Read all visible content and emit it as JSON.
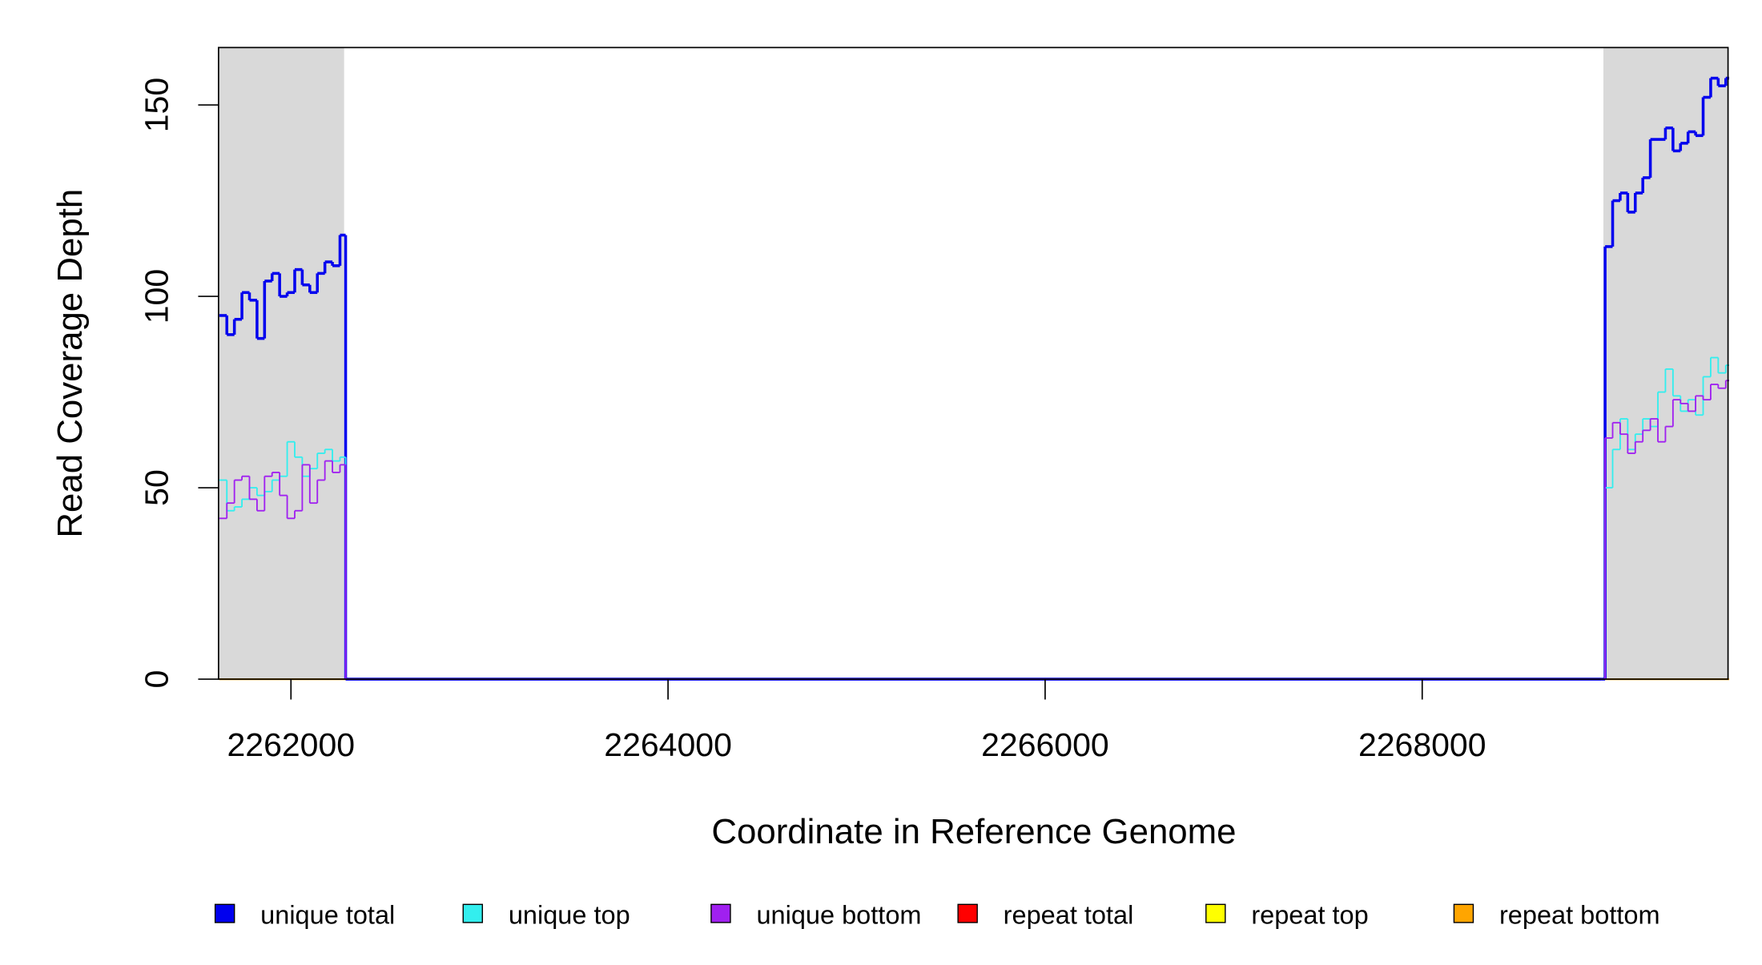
{
  "chart_data": {
    "type": "step",
    "x_label": "Coordinate in Reference Genome",
    "y_label": "Read Coverage Depth",
    "xlim": [
      2261616,
      2269622
    ],
    "ylim": [
      0,
      165
    ],
    "xticks": [
      2262000,
      2264000,
      2266000,
      2268000
    ],
    "yticks": [
      0,
      50,
      100,
      150
    ],
    "shaded_regions": [
      [
        2261616,
        2262282
      ],
      [
        2268961,
        2269622
      ]
    ],
    "shade_color": "#d9d9d9",
    "x": [
      2261620,
      2261660,
      2261700,
      2261740,
      2261780,
      2261820,
      2261860,
      2261900,
      2261940,
      2261980,
      2262020,
      2262060,
      2262100,
      2262140,
      2262180,
      2262220,
      2262260,
      2262290,
      2268950,
      2268970,
      2269010,
      2269050,
      2269090,
      2269130,
      2269170,
      2269210,
      2269250,
      2269290,
      2269330,
      2269370,
      2269410,
      2269450,
      2269490,
      2269530,
      2269570,
      2269610
    ],
    "series": [
      {
        "name": "repeat total",
        "color": "#ff0000",
        "width": 1.5,
        "values": [
          0,
          0,
          0,
          0,
          0,
          0,
          0,
          0,
          0,
          0,
          0,
          0,
          0,
          0,
          0,
          0,
          0,
          0,
          0,
          0,
          0,
          0,
          0,
          0,
          0,
          0,
          0,
          0,
          0,
          0,
          0,
          0,
          0,
          0,
          0,
          0
        ]
      },
      {
        "name": "repeat top",
        "color": "#ffff00",
        "width": 1.5,
        "values": [
          0,
          0,
          0,
          0,
          0,
          0,
          0,
          0,
          0,
          0,
          0,
          0,
          0,
          0,
          0,
          0,
          0,
          0,
          0,
          0,
          0,
          0,
          0,
          0,
          0,
          0,
          0,
          0,
          0,
          0,
          0,
          0,
          0,
          0,
          0,
          0
        ]
      },
      {
        "name": "repeat bottom",
        "color": "#ffa500",
        "width": 1.5,
        "values": [
          0,
          0,
          0,
          0,
          0,
          0,
          0,
          0,
          0,
          0,
          0,
          0,
          0,
          0,
          0,
          0,
          0,
          0,
          0,
          0,
          0,
          0,
          0,
          0,
          0,
          0,
          0,
          0,
          0,
          0,
          0,
          0,
          0,
          0,
          0,
          0
        ]
      },
      {
        "name": "unique total",
        "color": "#0000ee",
        "width": 2.5,
        "values": [
          95,
          90,
          94,
          101,
          99,
          89,
          104,
          106,
          100,
          101,
          107,
          103,
          101,
          106,
          109,
          108,
          116,
          0,
          0,
          113,
          125,
          127,
          122,
          127,
          131,
          141,
          141,
          144,
          138,
          140,
          143,
          142,
          152,
          157,
          155,
          157
        ]
      },
      {
        "name": "unique top",
        "color": "#33eeee",
        "width": 1.3,
        "values": [
          52,
          44,
          45,
          47,
          50,
          48,
          49,
          52,
          53,
          62,
          58,
          53,
          55,
          59,
          60,
          57,
          58,
          0,
          0,
          50,
          60,
          68,
          60,
          64,
          68,
          66,
          75,
          81,
          74,
          70,
          73,
          69,
          79,
          84,
          80,
          82
        ]
      },
      {
        "name": "unique bottom",
        "color": "#a020f0",
        "width": 1.3,
        "values": [
          42,
          46,
          52,
          53,
          47,
          44,
          53,
          54,
          48,
          42,
          44,
          56,
          46,
          52,
          57,
          54,
          56,
          0,
          0,
          63,
          67,
          64,
          59,
          62,
          65,
          68,
          62,
          66,
          73,
          72,
          70,
          74,
          73,
          77,
          76,
          78
        ]
      }
    ],
    "legend_order": [
      3,
      4,
      5,
      0,
      1,
      2
    ]
  }
}
